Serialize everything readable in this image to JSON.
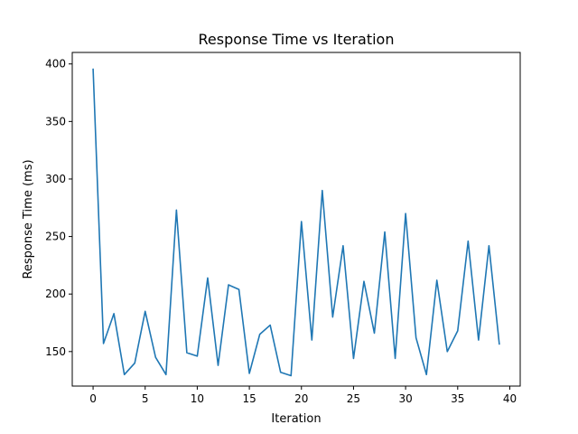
{
  "chart_data": {
    "type": "line",
    "title": "Response Time vs Iteration",
    "xlabel": "Iteration",
    "ylabel": "Response Time (ms)",
    "xlim": [
      -2,
      41
    ],
    "ylim": [
      120,
      410
    ],
    "xticks": [
      0,
      5,
      10,
      15,
      20,
      25,
      30,
      35,
      40
    ],
    "yticks": [
      150,
      200,
      250,
      300,
      350,
      400
    ],
    "grid": false,
    "line_color": "#1f77b4",
    "series": [
      {
        "x": [
          0,
          1,
          2,
          3,
          4,
          5,
          6,
          7,
          8,
          9,
          10,
          11,
          12,
          13,
          14,
          15,
          16,
          17,
          18,
          19,
          20,
          21,
          22,
          23,
          24,
          25,
          26,
          27,
          28,
          29,
          30,
          31,
          32,
          33,
          34,
          35,
          36,
          37,
          38,
          39
        ],
        "y": [
          396,
          157,
          183,
          130,
          140,
          185,
          145,
          130,
          273,
          149,
          146,
          214,
          138,
          208,
          204,
          131,
          165,
          173,
          132,
          129,
          263,
          160,
          290,
          180,
          242,
          144,
          211,
          166,
          254,
          144,
          270,
          162,
          130,
          212,
          150,
          168,
          246,
          160,
          242,
          156
        ]
      }
    ]
  }
}
